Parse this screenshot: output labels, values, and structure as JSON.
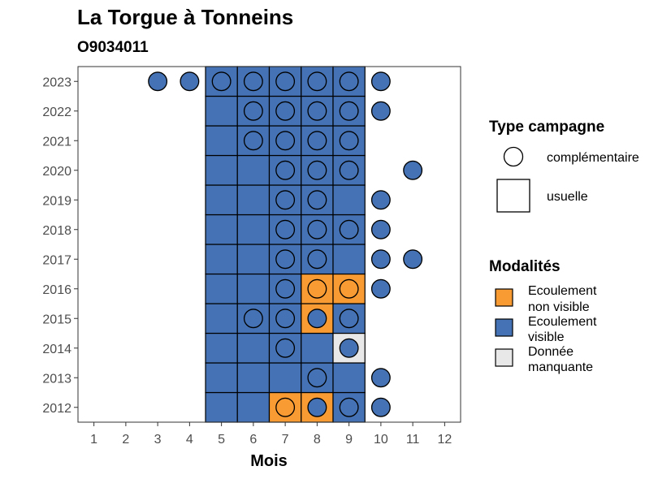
{
  "chart_data": {
    "type": "heatmap",
    "title": "La Torgue à Tonneins",
    "subtitle": "O9034011",
    "xlabel": "Mois",
    "ylabel": "",
    "x_ticks": [
      1,
      2,
      3,
      4,
      5,
      6,
      7,
      8,
      9,
      10,
      11,
      12
    ],
    "y_ticks": [
      2012,
      2013,
      2014,
      2015,
      2016,
      2017,
      2018,
      2019,
      2020,
      2021,
      2022,
      2023
    ],
    "xlim": [
      0.5,
      12.5
    ],
    "ylim": [
      2011.5,
      2023.5
    ],
    "colors": {
      "Ecoulement visible": "#4472b4",
      "Ecoulement non visible": "#f89b32",
      "Donnée manquante": "#e8e8e8"
    },
    "legends": {
      "shape": {
        "title": "Type campagne",
        "items": [
          {
            "shape": "circle",
            "label": "complémentaire"
          },
          {
            "shape": "square",
            "label": "usuelle"
          }
        ]
      },
      "fill": {
        "title": "Modalités",
        "items": [
          {
            "key": "Ecoulement non visible",
            "lines": [
              "Ecoulement",
              "non visible"
            ]
          },
          {
            "key": "Ecoulement visible",
            "lines": [
              "Ecoulement",
              "visible"
            ]
          },
          {
            "key": "Donnée manquante",
            "lines": [
              "Donnée",
              "manquante"
            ]
          }
        ]
      }
    },
    "usuelle": [
      {
        "year": 2012,
        "months": [
          5,
          6
        ],
        "modalite": "Ecoulement visible"
      },
      {
        "year": 2012,
        "months": [
          7,
          8
        ],
        "modalite": "Ecoulement non visible"
      },
      {
        "year": 2012,
        "months": [
          9
        ],
        "modalite": "Ecoulement visible"
      },
      {
        "year": 2013,
        "months": [
          5,
          6,
          7,
          8,
          9
        ],
        "modalite": "Ecoulement visible"
      },
      {
        "year": 2014,
        "months": [
          5,
          6,
          7,
          8
        ],
        "modalite": "Ecoulement visible"
      },
      {
        "year": 2014,
        "months": [
          9
        ],
        "modalite": "Donnée manquante"
      },
      {
        "year": 2015,
        "months": [
          5,
          6,
          7
        ],
        "modalite": "Ecoulement visible"
      },
      {
        "year": 2015,
        "months": [
          8
        ],
        "modalite": "Ecoulement non visible"
      },
      {
        "year": 2015,
        "months": [
          9
        ],
        "modalite": "Ecoulement visible"
      },
      {
        "year": 2016,
        "months": [
          5,
          6,
          7
        ],
        "modalite": "Ecoulement visible"
      },
      {
        "year": 2016,
        "months": [
          8,
          9
        ],
        "modalite": "Ecoulement non visible"
      },
      {
        "year": 2017,
        "months": [
          5,
          6,
          7,
          8,
          9
        ],
        "modalite": "Ecoulement visible"
      },
      {
        "year": 2018,
        "months": [
          5,
          6,
          7,
          8,
          9
        ],
        "modalite": "Ecoulement visible"
      },
      {
        "year": 2019,
        "months": [
          5,
          6,
          7,
          8,
          9
        ],
        "modalite": "Ecoulement visible"
      },
      {
        "year": 2020,
        "months": [
          5,
          6,
          7,
          8,
          9
        ],
        "modalite": "Ecoulement visible"
      },
      {
        "year": 2021,
        "months": [
          5,
          6,
          7,
          8,
          9
        ],
        "modalite": "Ecoulement visible"
      },
      {
        "year": 2022,
        "months": [
          5,
          6,
          7,
          8,
          9
        ],
        "modalite": "Ecoulement visible"
      },
      {
        "year": 2023,
        "months": [
          5,
          6,
          7,
          8,
          9
        ],
        "modalite": "Ecoulement visible"
      }
    ],
    "complementaire": [
      {
        "year": 2012,
        "month": 7,
        "modalite": "Ecoulement non visible"
      },
      {
        "year": 2012,
        "month": 8,
        "modalite": "Ecoulement visible"
      },
      {
        "year": 2012,
        "month": 9,
        "modalite": "Ecoulement visible"
      },
      {
        "year": 2012,
        "month": 10,
        "modalite": "Ecoulement visible"
      },
      {
        "year": 2013,
        "month": 8,
        "modalite": "Ecoulement visible"
      },
      {
        "year": 2013,
        "month": 10,
        "modalite": "Ecoulement visible"
      },
      {
        "year": 2014,
        "month": 7,
        "modalite": "Ecoulement visible"
      },
      {
        "year": 2014,
        "month": 9,
        "modalite": "Ecoulement visible"
      },
      {
        "year": 2015,
        "month": 6,
        "modalite": "Ecoulement visible"
      },
      {
        "year": 2015,
        "month": 7,
        "modalite": "Ecoulement visible"
      },
      {
        "year": 2015,
        "month": 8,
        "modalite": "Ecoulement visible"
      },
      {
        "year": 2015,
        "month": 9,
        "modalite": "Ecoulement visible"
      },
      {
        "year": 2016,
        "month": 7,
        "modalite": "Ecoulement visible"
      },
      {
        "year": 2016,
        "month": 8,
        "modalite": "Ecoulement non visible"
      },
      {
        "year": 2016,
        "month": 9,
        "modalite": "Ecoulement non visible"
      },
      {
        "year": 2016,
        "month": 10,
        "modalite": "Ecoulement visible"
      },
      {
        "year": 2017,
        "month": 7,
        "modalite": "Ecoulement visible"
      },
      {
        "year": 2017,
        "month": 8,
        "modalite": "Ecoulement visible"
      },
      {
        "year": 2017,
        "month": 10,
        "modalite": "Ecoulement visible"
      },
      {
        "year": 2017,
        "month": 11,
        "modalite": "Ecoulement visible"
      },
      {
        "year": 2018,
        "month": 7,
        "modalite": "Ecoulement visible"
      },
      {
        "year": 2018,
        "month": 8,
        "modalite": "Ecoulement visible"
      },
      {
        "year": 2018,
        "month": 9,
        "modalite": "Ecoulement visible"
      },
      {
        "year": 2018,
        "month": 10,
        "modalite": "Ecoulement visible"
      },
      {
        "year": 2019,
        "month": 7,
        "modalite": "Ecoulement visible"
      },
      {
        "year": 2019,
        "month": 8,
        "modalite": "Ecoulement visible"
      },
      {
        "year": 2019,
        "month": 10,
        "modalite": "Ecoulement visible"
      },
      {
        "year": 2020,
        "month": 7,
        "modalite": "Ecoulement visible"
      },
      {
        "year": 2020,
        "month": 8,
        "modalite": "Ecoulement visible"
      },
      {
        "year": 2020,
        "month": 9,
        "modalite": "Ecoulement visible"
      },
      {
        "year": 2020,
        "month": 11,
        "modalite": "Ecoulement visible"
      },
      {
        "year": 2021,
        "month": 6,
        "modalite": "Ecoulement visible"
      },
      {
        "year": 2021,
        "month": 7,
        "modalite": "Ecoulement visible"
      },
      {
        "year": 2021,
        "month": 8,
        "modalite": "Ecoulement visible"
      },
      {
        "year": 2021,
        "month": 9,
        "modalite": "Ecoulement visible"
      },
      {
        "year": 2022,
        "month": 6,
        "modalite": "Ecoulement visible"
      },
      {
        "year": 2022,
        "month": 7,
        "modalite": "Ecoulement visible"
      },
      {
        "year": 2022,
        "month": 8,
        "modalite": "Ecoulement visible"
      },
      {
        "year": 2022,
        "month": 9,
        "modalite": "Ecoulement visible"
      },
      {
        "year": 2022,
        "month": 10,
        "modalite": "Ecoulement visible"
      },
      {
        "year": 2023,
        "month": 3,
        "modalite": "Ecoulement visible"
      },
      {
        "year": 2023,
        "month": 4,
        "modalite": "Ecoulement visible"
      },
      {
        "year": 2023,
        "month": 5,
        "modalite": "Ecoulement visible"
      },
      {
        "year": 2023,
        "month": 6,
        "modalite": "Ecoulement visible"
      },
      {
        "year": 2023,
        "month": 7,
        "modalite": "Ecoulement visible"
      },
      {
        "year": 2023,
        "month": 8,
        "modalite": "Ecoulement visible"
      },
      {
        "year": 2023,
        "month": 9,
        "modalite": "Ecoulement visible"
      },
      {
        "year": 2023,
        "month": 10,
        "modalite": "Ecoulement visible"
      }
    ]
  }
}
